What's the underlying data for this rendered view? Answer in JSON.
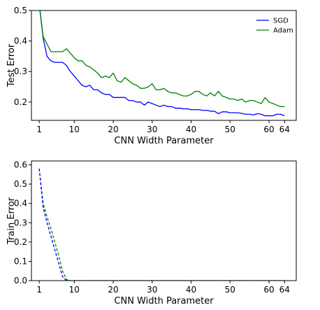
{
  "chart_data": [
    {
      "type": "line",
      "xlabel": "CNN Width Parameter",
      "ylabel": "Test Error",
      "xlim": [
        -1,
        67
      ],
      "ylim": [
        0.14,
        0.5
      ],
      "xticks": [
        1,
        10,
        20,
        30,
        40,
        50,
        60,
        64
      ],
      "yticks": [
        0.2,
        0.3,
        0.4,
        0.5
      ],
      "ytick_labels": [
        "0.2",
        "0.3",
        "0.4",
        "0.5"
      ],
      "grid": false,
      "legend_position": "top-right",
      "x": [
        1,
        2,
        3,
        4,
        5,
        6,
        7,
        8,
        9,
        10,
        11,
        12,
        13,
        14,
        15,
        16,
        17,
        18,
        19,
        20,
        21,
        22,
        23,
        24,
        25,
        26,
        27,
        28,
        29,
        30,
        31,
        32,
        33,
        34,
        35,
        36,
        37,
        38,
        39,
        40,
        41,
        42,
        43,
        44,
        45,
        46,
        47,
        48,
        49,
        50,
        51,
        52,
        53,
        54,
        55,
        56,
        57,
        58,
        59,
        60,
        61,
        62,
        63,
        64
      ],
      "series": [
        {
          "name": "SGD",
          "color": "#0000ff",
          "style": "solid",
          "values": [
            0.52,
            0.41,
            0.35,
            0.335,
            0.33,
            0.33,
            0.33,
            0.32,
            0.3,
            0.285,
            0.27,
            0.255,
            0.25,
            0.255,
            0.24,
            0.24,
            0.23,
            0.225,
            0.225,
            0.215,
            0.215,
            0.215,
            0.215,
            0.205,
            0.205,
            0.2,
            0.2,
            0.19,
            0.2,
            0.195,
            0.19,
            0.185,
            0.19,
            0.185,
            0.185,
            0.18,
            0.18,
            0.178,
            0.178,
            0.175,
            0.175,
            0.175,
            0.173,
            0.173,
            0.17,
            0.17,
            0.162,
            0.168,
            0.168,
            0.165,
            0.165,
            0.165,
            0.163,
            0.16,
            0.16,
            0.158,
            0.162,
            0.16,
            0.155,
            0.155,
            0.155,
            0.16,
            0.16,
            0.155
          ]
        },
        {
          "name": "Adam",
          "color": "#008000",
          "style": "solid",
          "values": [
            0.52,
            0.415,
            0.39,
            0.365,
            0.365,
            0.365,
            0.365,
            0.375,
            0.36,
            0.345,
            0.335,
            0.335,
            0.32,
            0.315,
            0.305,
            0.295,
            0.28,
            0.285,
            0.28,
            0.295,
            0.27,
            0.265,
            0.28,
            0.27,
            0.26,
            0.255,
            0.245,
            0.245,
            0.25,
            0.26,
            0.24,
            0.24,
            0.245,
            0.235,
            0.23,
            0.23,
            0.225,
            0.22,
            0.22,
            0.225,
            0.235,
            0.235,
            0.225,
            0.22,
            0.23,
            0.22,
            0.235,
            0.22,
            0.215,
            0.21,
            0.21,
            0.205,
            0.21,
            0.2,
            0.205,
            0.205,
            0.2,
            0.195,
            0.215,
            0.2,
            0.195,
            0.19,
            0.185,
            0.185
          ]
        }
      ]
    },
    {
      "type": "line",
      "xlabel": "CNN Width Parameter",
      "ylabel": "Train Error",
      "xlim": [
        -1,
        67
      ],
      "ylim": [
        0.0,
        0.62
      ],
      "xticks": [
        1,
        10,
        20,
        30,
        40,
        50,
        60,
        64
      ],
      "yticks": [
        0.0,
        0.1,
        0.2,
        0.3,
        0.4,
        0.5,
        0.6
      ],
      "ytick_labels": [
        "0.0",
        "0.1",
        "0.2",
        "0.3",
        "0.4",
        "0.5",
        "0.6"
      ],
      "grid": false,
      "series": [
        {
          "color": "#008000",
          "style": "dashed",
          "x": [
            1,
            2,
            3,
            4,
            5,
            6,
            7,
            8,
            9,
            10,
            20,
            30,
            40,
            50,
            60,
            64
          ],
          "values": [
            0.58,
            0.4,
            0.33,
            0.27,
            0.2,
            0.13,
            0.05,
            0.005,
            0,
            0,
            0,
            0,
            0,
            0,
            0,
            0
          ]
        },
        {
          "color": "#0000ff",
          "style": "dashed",
          "x": [
            1,
            2,
            3,
            4,
            5,
            6,
            7,
            8,
            9,
            10,
            20,
            30,
            40,
            50,
            60,
            64
          ],
          "values": [
            0.58,
            0.38,
            0.3,
            0.23,
            0.16,
            0.09,
            0.02,
            0,
            0,
            0,
            0,
            0,
            0,
            0,
            0,
            0
          ]
        }
      ]
    }
  ]
}
